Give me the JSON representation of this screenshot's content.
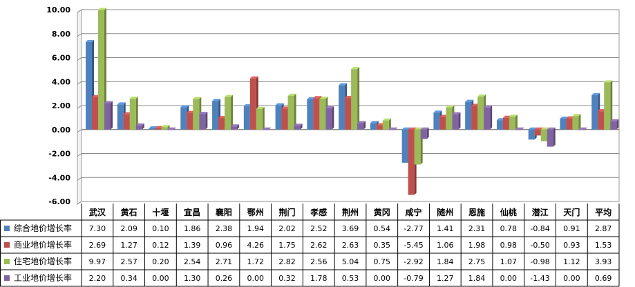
{
  "chart_data": {
    "type": "bar",
    "categories": [
      "武汉",
      "黄石",
      "十堰",
      "宜昌",
      "襄阳",
      "鄂州",
      "荆门",
      "孝感",
      "荆州",
      "黄冈",
      "咸宁",
      "随州",
      "恩施",
      "仙桃",
      "潜江",
      "天门",
      "平均"
    ],
    "series": [
      {
        "name": "综合地价增长率",
        "color": "#4f81bd",
        "values": [
          7.3,
          2.09,
          0.1,
          1.86,
          2.38,
          1.94,
          2.02,
          2.52,
          3.69,
          0.54,
          -2.77,
          1.41,
          2.31,
          0.78,
          -0.84,
          0.91,
          2.87
        ]
      },
      {
        "name": "商业地价增长率",
        "color": "#c0504d",
        "values": [
          2.69,
          1.27,
          0.12,
          1.39,
          0.96,
          4.26,
          1.75,
          2.62,
          2.63,
          0.35,
          -5.45,
          1.06,
          1.98,
          0.98,
          -0.5,
          0.93,
          1.53
        ]
      },
      {
        "name": "住宅地价增长率",
        "color": "#9bbb59",
        "values": [
          9.97,
          2.57,
          0.2,
          2.54,
          2.71,
          1.72,
          2.82,
          2.56,
          5.04,
          0.75,
          -2.92,
          1.84,
          2.75,
          1.07,
          -0.98,
          1.12,
          3.93
        ]
      },
      {
        "name": "工业地价增长率",
        "color": "#8064a2",
        "values": [
          2.2,
          0.34,
          0.0,
          1.3,
          0.26,
          0.0,
          0.32,
          1.78,
          0.53,
          0.0,
          -0.79,
          1.27,
          1.84,
          0.0,
          -1.43,
          0.0,
          0.69
        ]
      }
    ],
    "ylim": [
      -6,
      10
    ],
    "yticks": [
      "10.00",
      "8.00",
      "6.00",
      "4.00",
      "2.00",
      "0.00",
      "-2.00",
      "-4.00",
      "-6.00"
    ],
    "table_values": [
      [
        "7.30",
        "2.09",
        "0.10",
        "1.86",
        "2.38",
        "1.94",
        "2.02",
        "2.52",
        "3.69",
        "0.54",
        "-2.77",
        "1.41",
        "2.31",
        "0.78",
        "-0.84",
        "0.91",
        "2.87"
      ],
      [
        "2.69",
        "1.27",
        "0.12",
        "1.39",
        "0.96",
        "4.26",
        "1.75",
        "2.62",
        "2.63",
        "0.35",
        "-5.45",
        "1.06",
        "1.98",
        "0.98",
        "-0.50",
        "0.93",
        "1.53"
      ],
      [
        "9.97",
        "2.57",
        "0.20",
        "2.54",
        "2.71",
        "1.72",
        "2.82",
        "2.56",
        "5.04",
        "0.75",
        "-2.92",
        "1.84",
        "2.75",
        "1.07",
        "-0.98",
        "1.12",
        "3.93"
      ],
      [
        "2.20",
        "0.34",
        "0.00",
        "1.30",
        "0.26",
        "0.00",
        "0.32",
        "1.78",
        "0.53",
        "0.00",
        "-0.79",
        "1.27",
        "1.84",
        "0.00",
        "-1.43",
        "0.00",
        "0.69"
      ]
    ],
    "grid": true,
    "legend": "data-table"
  }
}
